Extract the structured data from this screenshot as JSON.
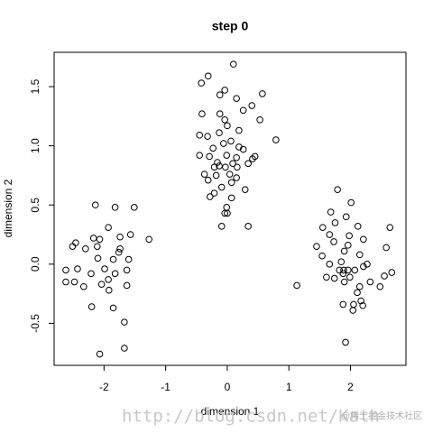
{
  "chart_data": {
    "type": "scatter",
    "title": "step 0",
    "x_label": "dimension 1",
    "y_label": "dimension 2",
    "xlim": [
      -2.81,
      2.9
    ],
    "ylim": [
      -0.855,
      1.79
    ],
    "xticks": [
      -2,
      -1,
      0,
      1,
      2
    ],
    "yticks": [
      -0.5,
      {
        "value": 0,
        "label": "0.0"
      },
      0.5,
      {
        "value": 1,
        "label": "1.0"
      },
      1.5
    ],
    "series": [
      {
        "color": "#000000",
        "x": [
          -2.14,
          -1.82,
          -1.51,
          -2.46,
          -2.51,
          -2.17,
          -2.07,
          -2.3,
          -1.74,
          -2.11,
          -1.74,
          -1.76,
          -1.57,
          -1.27,
          -2.1,
          -2.62,
          -2.43,
          -1.85,
          -2.21,
          -1.6,
          -1.99,
          -1.93,
          -1.82,
          -1.63,
          -2.33,
          -2.04,
          -1.92,
          -1.63,
          -2.62,
          -2.48,
          -1.85,
          -1.67,
          -2.2,
          -2.07,
          -1.67,
          -1.93,
          0.1,
          -0.31,
          -0.04,
          -0.42,
          -0.12,
          0.15,
          0.57,
          0.26,
          -0.41,
          -0.12,
          -0.04,
          0.4,
          0.53,
          0,
          -0.32,
          -0.45,
          -0.13,
          0.19,
          0.79,
          -0.06,
          0.06,
          0.19,
          0.26,
          -0.23,
          -0.45,
          -0.29,
          -0.01,
          0.15,
          0.41,
          0.45,
          0.34,
          0.09,
          -0.16,
          -0.21,
          0.16,
          -0.03,
          -0.37,
          0.04,
          0.15,
          -0.31,
          0.07,
          -0.18,
          -0.09,
          0.29,
          -0.28,
          -0.21,
          0.07,
          -0.01,
          -0.04,
          0,
          -0.09,
          0.34,
          -0.13,
          1.79,
          2.01,
          1.68,
          1.93,
          1.75,
          1.55,
          2.12,
          2.64,
          1.66,
          1.98,
          1.45,
          1.73,
          1.96,
          2.21,
          2.58,
          1.9,
          2.15,
          1.54,
          1.85,
          1.66,
          2.27,
          1.13,
          1.82,
          1.89,
          1.96,
          2.07,
          2.21,
          2.67,
          1.61,
          1.88,
          1.99,
          2.55,
          2.32,
          2.48,
          1.9,
          2.11,
          2.17,
          1.88,
          2.05,
          2.2,
          2.04,
          1.92,
          2.15,
          1.74
        ],
        "values": [
          0.5,
          0.48,
          0.48,
          0.18,
          0.15,
          0.22,
          0.21,
          0.13,
          0.23,
          0.15,
          0.13,
          0.1,
          0.25,
          0.21,
          0.05,
          -0.05,
          -0.04,
          0.04,
          -0.08,
          0.04,
          -0.04,
          -0.13,
          -0.08,
          -0.05,
          -0.19,
          -0.17,
          -0.22,
          -0.18,
          -0.15,
          -0.15,
          -0.37,
          -0.49,
          -0.36,
          -0.76,
          -0.71,
          0.31,
          1.69,
          1.59,
          1.47,
          1.53,
          1.43,
          1.4,
          1.44,
          1.3,
          1.27,
          1.27,
          1.22,
          1.34,
          1.22,
          1.17,
          1.08,
          1.09,
          1.11,
          1.13,
          1.05,
          1.02,
          1.04,
          0.99,
          0.97,
          0.98,
          0.92,
          0.91,
          0.92,
          0.9,
          0.89,
          0.91,
          0.85,
          0.85,
          0.86,
          0.82,
          0.82,
          0.82,
          0.76,
          0.76,
          0.73,
          0.71,
          0.69,
          0.75,
          0.65,
          0.63,
          0.57,
          0.6,
          0.56,
          0.48,
          0.43,
          0.43,
          0.32,
          0.32,
          0.83,
          0.63,
          0.52,
          0.44,
          0.4,
          0.35,
          0.31,
          0.32,
          0.31,
          0.25,
          0.24,
          0.15,
          0.19,
          0.16,
          0.21,
          0.14,
          0.11,
          0.08,
          0.07,
          0.02,
          0,
          0,
          -0.18,
          -0.05,
          -0.05,
          -0.05,
          -0.05,
          -0.02,
          -0.07,
          -0.11,
          -0.08,
          -0.11,
          -0.1,
          -0.15,
          -0.19,
          -0.15,
          -0.24,
          -0.31,
          -0.34,
          -0.34,
          -0.35,
          -0.39,
          -0.66,
          -0.19,
          -0.12
        ]
      }
    ],
    "watermark": [
      "http://blog.csdn.net/Kath",
      "@稀土掘金技术社区"
    ]
  }
}
